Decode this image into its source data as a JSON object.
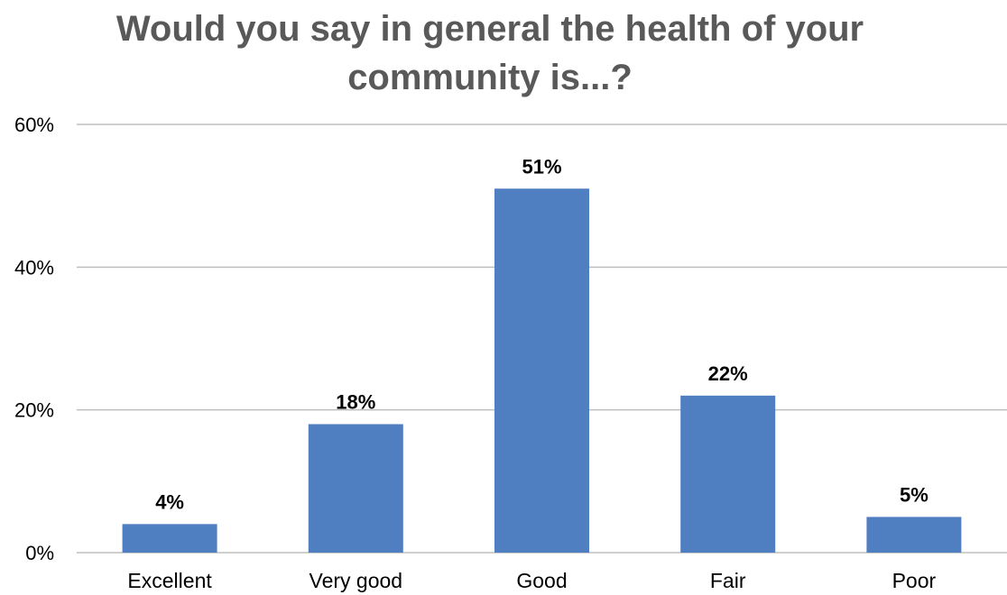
{
  "chart_data": {
    "type": "bar",
    "title_lines": [
      "Would you say in general the health of your",
      "community is...?"
    ],
    "categories": [
      "Excellent",
      "Very good",
      "Good",
      "Fair",
      "Poor"
    ],
    "values": [
      4,
      18,
      51,
      22,
      5
    ],
    "value_labels": [
      "4%",
      "18%",
      "51%",
      "22%",
      "5%"
    ],
    "ylim": [
      0,
      60
    ],
    "yticks": [
      0,
      20,
      40,
      60
    ],
    "ytick_labels": [
      "0%",
      "20%",
      "40%",
      "60%"
    ],
    "grid": true,
    "legend": "none",
    "bar_color": "#4f7ec1"
  }
}
